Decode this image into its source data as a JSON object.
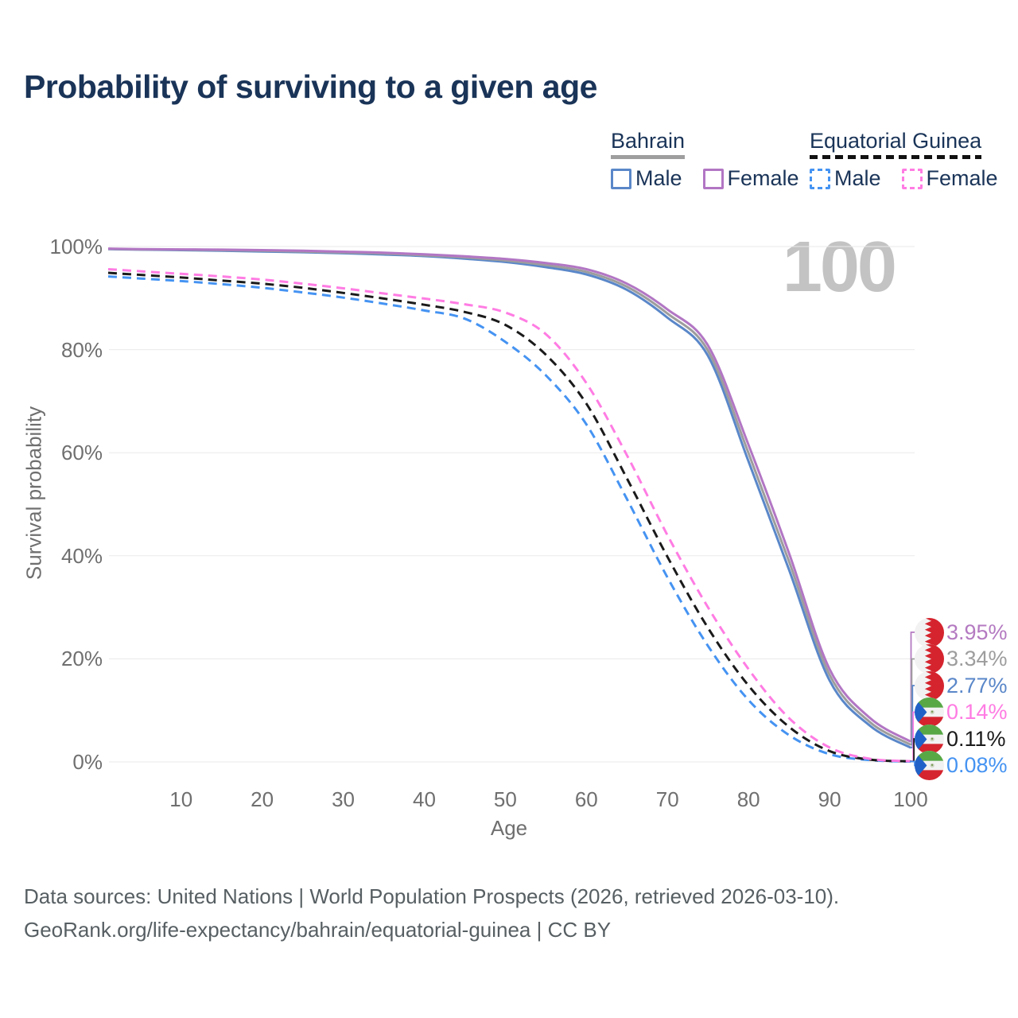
{
  "title": "Probability of surviving to a given age",
  "watermark": "100",
  "legend": {
    "groups": [
      {
        "country": "Bahrain",
        "line_style": "solid",
        "underline_color": "#9e9e9e",
        "items": [
          {
            "label": "Male",
            "color": "#5a87c9"
          },
          {
            "label": "Female",
            "color": "#b276c4"
          }
        ]
      },
      {
        "country": "Equatorial Guinea",
        "line_style": "dashed",
        "underline_color": "#111111",
        "items": [
          {
            "label": "Male",
            "color": "#4593f2"
          },
          {
            "label": "Female",
            "color": "#ff7ce3"
          }
        ]
      }
    ]
  },
  "end_labels": [
    {
      "value": "3.95%",
      "color": "#b47ac1",
      "flag": "bahrain"
    },
    {
      "value": "3.34%",
      "color": "#9d9d9d",
      "flag": "bahrain"
    },
    {
      "value": "2.77%",
      "color": "#5a87c9",
      "flag": "bahrain"
    },
    {
      "value": "0.14%",
      "color": "#ff7ce3",
      "flag": "equatorial-guinea"
    },
    {
      "value": "0.11%",
      "color": "#1a1a1a",
      "flag": "equatorial-guinea"
    },
    {
      "value": "0.08%",
      "color": "#4593f2",
      "flag": "equatorial-guinea"
    }
  ],
  "footer": {
    "line1": "Data sources: United Nations | World Population Prospects (2026, retrieved 2026-03-10).",
    "line2": "GeoRank.org/life-expectancy/bahrain/equatorial-guinea | CC BY"
  },
  "chart_data": {
    "type": "line",
    "title": "Probability of surviving to a given age",
    "xlabel": "Age",
    "ylabel": "Survival probability",
    "xlim": [
      1,
      100
    ],
    "ylim": [
      0,
      100
    ],
    "grid": "horizontal",
    "x_ticks": [
      10,
      20,
      30,
      40,
      50,
      60,
      70,
      80,
      90,
      100
    ],
    "y_ticks": [
      "0%",
      "20%",
      "40%",
      "60%",
      "80%",
      "100%"
    ],
    "ages": [
      1,
      5,
      10,
      15,
      20,
      25,
      30,
      35,
      40,
      45,
      50,
      55,
      60,
      65,
      70,
      75,
      80,
      85,
      90,
      95,
      100
    ],
    "series": [
      {
        "name": "Equatorial Guinea Male",
        "style": "dashed",
        "color": "#4593f2",
        "end_label": "0.08%",
        "values": [
          94.2,
          93.8,
          93.3,
          92.7,
          92.0,
          91.1,
          90.1,
          88.9,
          87.6,
          86.0,
          81.5,
          75.0,
          65.5,
          51.0,
          35.8,
          22.5,
          12.0,
          5.2,
          1.5,
          0.35,
          0.08
        ]
      },
      {
        "name": "Equatorial Guinea Both sexes",
        "style": "dashed",
        "color": "#1a1a1a",
        "end_label": "0.11%",
        "values": [
          94.9,
          94.5,
          94.0,
          93.4,
          92.8,
          92.0,
          91.0,
          89.9,
          88.7,
          87.3,
          84.8,
          79.0,
          69.5,
          55.0,
          39.8,
          26.0,
          14.8,
          6.8,
          2.1,
          0.45,
          0.11
        ]
      },
      {
        "name": "Equatorial Guinea Female",
        "style": "dashed",
        "color": "#ff7ce3",
        "end_label": "0.14%",
        "values": [
          95.6,
          95.2,
          94.7,
          94.2,
          93.6,
          92.8,
          91.9,
          90.9,
          89.9,
          88.8,
          87.2,
          83.0,
          73.5,
          59.5,
          44.0,
          30.0,
          18.0,
          8.5,
          2.8,
          0.6,
          0.14
        ]
      },
      {
        "name": "Bahrain Male",
        "style": "solid",
        "color": "#5a87c9",
        "end_label": "2.77%",
        "values": [
          99.5,
          99.4,
          99.3,
          99.2,
          99.05,
          98.9,
          98.7,
          98.45,
          98.15,
          97.65,
          97.0,
          96.0,
          94.6,
          91.6,
          86.2,
          78.8,
          58.3,
          37.3,
          15.8,
          7.0,
          2.77
        ]
      },
      {
        "name": "Bahrain Both sexes",
        "style": "solid",
        "color": "#9d9d9d",
        "end_label": "3.34%",
        "values": [
          99.55,
          99.45,
          99.4,
          99.3,
          99.2,
          99.05,
          98.85,
          98.65,
          98.3,
          97.9,
          97.3,
          96.4,
          95.1,
          92.2,
          87.0,
          79.8,
          59.9,
          38.9,
          16.9,
          7.7,
          3.34
        ]
      },
      {
        "name": "Bahrain Female",
        "style": "solid",
        "color": "#b276c4",
        "end_label": "3.95%",
        "values": [
          99.6,
          99.5,
          99.45,
          99.4,
          99.3,
          99.2,
          99.0,
          98.8,
          98.5,
          98.1,
          97.6,
          96.8,
          95.6,
          92.8,
          87.8,
          80.8,
          61.5,
          40.5,
          18.0,
          8.5,
          3.95
        ]
      }
    ]
  }
}
